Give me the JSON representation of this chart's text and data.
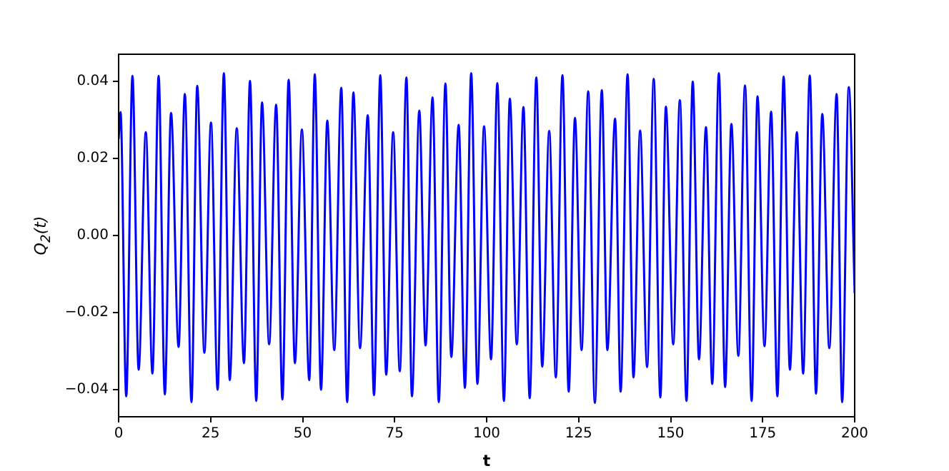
{
  "chart_data": {
    "type": "line",
    "xlabel": "t",
    "ylabel": "Q$_{2}$(t)",
    "xlim": [
      0,
      200
    ],
    "xticks": [
      0,
      25,
      50,
      75,
      100,
      125,
      150,
      175,
      200
    ],
    "ylim": [
      -0.047,
      0.047
    ],
    "yticks": [
      {
        "value": -0.04,
        "label": "−0.04"
      },
      {
        "value": -0.02,
        "label": "−0.02"
      },
      {
        "value": 0,
        "label": "0.00"
      },
      {
        "value": 0.02,
        "label": "0.02"
      },
      {
        "value": 0.04,
        "label": "0.04"
      }
    ],
    "grid": false,
    "legend": false,
    "marker": "none",
    "line_style": "solid",
    "series": [
      {
        "color": "#0000ff",
        "x": [
          0,
          0.52,
          2.07,
          3.76,
          5.44,
          7.38,
          9.19,
          10.87,
          12.56,
          14.24,
          16.3,
          17.99,
          19.8,
          21.36,
          23.3,
          25.1,
          26.9,
          28.6,
          30.2,
          32.1,
          34.06,
          35.7,
          37.4,
          38.97,
          40.9,
          42.8,
          44.5,
          46.2,
          47.9,
          49.8,
          51.8,
          53.3,
          55.0,
          56.7,
          58.6,
          60.5,
          62.1,
          63.8,
          65.6,
          67.7,
          69.4,
          71.1,
          72.7,
          74.6,
          76.4,
          78.2,
          79.7,
          81.7,
          83.4,
          85.3,
          87.0,
          88.8,
          90.4,
          92.4,
          94.1,
          95.8,
          97.5,
          99.3,
          101.2,
          102.9,
          104.7,
          106.3,
          108.2,
          110.0,
          111.7,
          113.5,
          115.1,
          117.0,
          118.8,
          120.6,
          122.3,
          124.0,
          125.8,
          127.6,
          129.4,
          131.3,
          132.8,
          134.9,
          136.4,
          138.3,
          139.9,
          141.7,
          143.6,
          145.4,
          147.2,
          148.7,
          150.7,
          152.5,
          154.3,
          156.0,
          157.7,
          159.6,
          161.3,
          163.1,
          164.8,
          166.5,
          168.4,
          170.2,
          172.0,
          173.6,
          175.5,
          177.3,
          179.0,
          180.7,
          182.4,
          184.3,
          186.0,
          187.8,
          189.5,
          191.2,
          193.1,
          195.1,
          196.6,
          198.4,
          200
        ],
        "values": [
          0.025,
          0.032,
          -0.0417,
          0.0414,
          -0.0348,
          0.0268,
          -0.0358,
          0.0414,
          -0.0412,
          0.0318,
          -0.0289,
          0.0367,
          -0.0432,
          0.0388,
          -0.0304,
          0.0293,
          -0.04,
          0.0421,
          -0.0375,
          0.0278,
          -0.0331,
          0.0401,
          -0.0429,
          0.0345,
          -0.0282,
          0.0339,
          -0.0425,
          0.0404,
          -0.0331,
          0.0275,
          -0.0375,
          0.0418,
          -0.04,
          0.0298,
          -0.0297,
          0.0383,
          -0.0432,
          0.0371,
          -0.0292,
          0.0312,
          -0.0414,
          0.0416,
          -0.0361,
          0.0268,
          -0.0352,
          0.041,
          -0.0417,
          0.0324,
          -0.0285,
          0.0358,
          -0.0432,
          0.0394,
          -0.0315,
          0.0287,
          -0.0395,
          0.0421,
          -0.0385,
          0.0283,
          -0.0321,
          0.0395,
          -0.0429,
          0.0355,
          -0.0282,
          0.0333,
          -0.0422,
          0.041,
          -0.034,
          0.0271,
          -0.0368,
          0.0416,
          -0.0405,
          0.0305,
          -0.0297,
          0.0374,
          -0.0434,
          0.0377,
          -0.0297,
          0.0303,
          -0.0405,
          0.0418,
          -0.0368,
          0.0272,
          -0.0341,
          0.0406,
          -0.042,
          0.0334,
          -0.0282,
          0.0351,
          -0.0429,
          0.0399,
          -0.0321,
          0.0281,
          -0.0385,
          0.0421,
          -0.0393,
          0.0289,
          -0.0312,
          0.0389,
          -0.0429,
          0.0361,
          -0.0287,
          0.0321,
          -0.0417,
          0.0412,
          -0.0348,
          0.0268,
          -0.0358,
          0.0415,
          -0.041,
          0.0315,
          -0.0292,
          0.0367,
          -0.0432,
          0.0385,
          -0.015
        ]
      }
    ]
  }
}
